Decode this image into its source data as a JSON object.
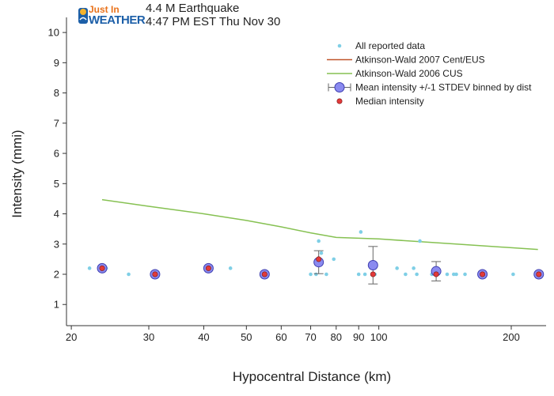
{
  "header": {
    "logo_just": "Just In",
    "logo_weather": "WEATHER",
    "title_line1": "4.4 M Earthquake",
    "title_line2": "4:47 PM EST Thu Nov 30"
  },
  "colors": {
    "reported": "#7fcfe6",
    "atkinson2007": "#c0552a",
    "atkinson2006": "#86c152",
    "mean_fill": "#8a8af0",
    "mean_edge": "#3f3fb0",
    "median": "#e23a3a"
  },
  "chart_data": {
    "type": "scatter",
    "xlabel": "Hypocentral Distance (km)",
    "ylabel": "Intensity (mmi)",
    "x_scale": "log",
    "xlim": [
      19.5,
      240
    ],
    "ylim": [
      0.3,
      10.5
    ],
    "x_ticks": [
      20,
      30,
      40,
      50,
      60,
      70,
      80,
      90,
      100,
      200
    ],
    "x_tick_labels": [
      "20",
      "30",
      "40",
      "50",
      "60",
      "70",
      "80",
      "90",
      "100",
      "200"
    ],
    "y_ticks": [
      1,
      2,
      3,
      4,
      5,
      6,
      7,
      8,
      9,
      10
    ],
    "y_tick_labels": [
      "1",
      "2",
      "3",
      "4",
      "5",
      "6",
      "7",
      "8",
      "9",
      "10"
    ],
    "grid": false,
    "legend_position": "top-right",
    "legend": [
      {
        "label": "All reported data",
        "marker": "dot"
      },
      {
        "label": "Atkinson-Wald 2007 Cent/EUS",
        "marker": "line2007"
      },
      {
        "label": "Atkinson-Wald 2006 CUS",
        "marker": "line2006"
      },
      {
        "label": "Mean intensity +/-1 STDEV binned by dist",
        "marker": "mean"
      },
      {
        "label": "Median intensity",
        "marker": "median"
      }
    ],
    "reported": [
      [
        22,
        2.2
      ],
      [
        24,
        2.2
      ],
      [
        27,
        2.0
      ],
      [
        31,
        2.0
      ],
      [
        41,
        2.2
      ],
      [
        46,
        2.2
      ],
      [
        55,
        2.0
      ],
      [
        70,
        2.0
      ],
      [
        72,
        2.0
      ],
      [
        73,
        3.1
      ],
      [
        74,
        2.7
      ],
      [
        76,
        2.0
      ],
      [
        79,
        2.5
      ],
      [
        90,
        2.0
      ],
      [
        91,
        3.4
      ],
      [
        93,
        2.0
      ],
      [
        98,
        2.0
      ],
      [
        110,
        2.2
      ],
      [
        115,
        2.0
      ],
      [
        120,
        2.2
      ],
      [
        122,
        2.0
      ],
      [
        124,
        3.1
      ],
      [
        132,
        2.0
      ],
      [
        135,
        2.0
      ],
      [
        143,
        2.0
      ],
      [
        148,
        2.0
      ],
      [
        150,
        2.0
      ],
      [
        157,
        2.0
      ],
      [
        170,
        2.0
      ],
      [
        172,
        2.0
      ],
      [
        202,
        2.0
      ],
      [
        230,
        2.0
      ]
    ],
    "atkinson_wald_2006": [
      [
        23.5,
        4.47
      ],
      [
        30,
        4.25
      ],
      [
        40,
        4.0
      ],
      [
        50,
        3.78
      ],
      [
        60,
        3.57
      ],
      [
        70,
        3.37
      ],
      [
        80,
        3.22
      ],
      [
        100,
        3.17
      ],
      [
        150,
        3.0
      ],
      [
        230,
        2.82
      ]
    ],
    "atkinson_wald_2007": [],
    "mean_binned": [
      {
        "x": 23.5,
        "y": 2.2,
        "sd": 0
      },
      {
        "x": 31,
        "y": 2.0,
        "sd": 0
      },
      {
        "x": 41,
        "y": 2.2,
        "sd": 0
      },
      {
        "x": 55,
        "y": 2.0,
        "sd": 0
      },
      {
        "x": 73,
        "y": 2.4,
        "sd": 0.38
      },
      {
        "x": 97,
        "y": 2.3,
        "sd": 0.62
      },
      {
        "x": 135,
        "y": 2.1,
        "sd": 0.32
      },
      {
        "x": 172,
        "y": 2.0,
        "sd": 0
      },
      {
        "x": 231,
        "y": 2.0,
        "sd": 0
      }
    ],
    "median": [
      [
        23.5,
        2.2
      ],
      [
        31,
        2.0
      ],
      [
        41,
        2.2
      ],
      [
        55,
        2.0
      ],
      [
        73,
        2.5
      ],
      [
        97,
        2.0
      ],
      [
        135,
        2.0
      ],
      [
        172,
        2.0
      ],
      [
        231,
        2.0
      ]
    ]
  }
}
